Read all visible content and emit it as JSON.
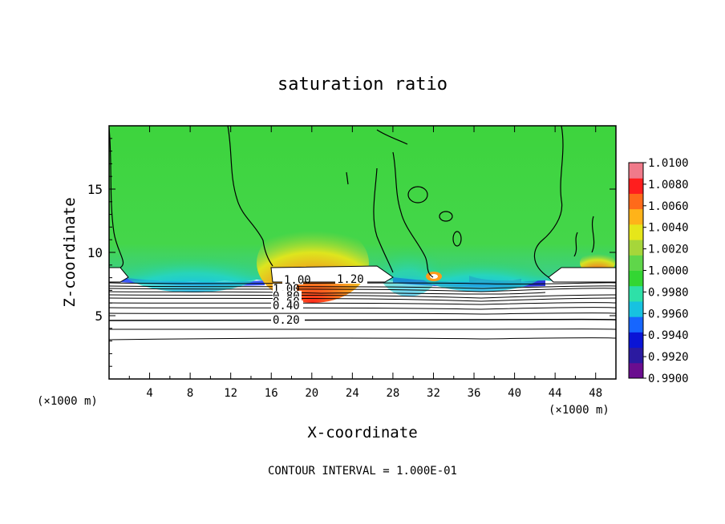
{
  "chart_data": {
    "type": "heatmap",
    "title": "saturation ratio",
    "xlabel": "X-coordinate",
    "ylabel": "Z-coordinate",
    "x_unit": "(×1000 m)",
    "x_unit_right": "(×1000 m)",
    "xlim": [
      0,
      50
    ],
    "ylim": [
      0,
      20
    ],
    "x_ticks": [
      "4",
      "8",
      "12",
      "16",
      "20",
      "24",
      "28",
      "32",
      "36",
      "40",
      "44",
      "48"
    ],
    "y_ticks": [
      "5",
      "10",
      "15"
    ],
    "colorbar": {
      "min": 0.99,
      "max": 1.01,
      "labels": [
        "1.0100",
        "1.0080",
        "1.0060",
        "1.0040",
        "1.0020",
        "1.0000",
        "0.9980",
        "0.9960",
        "0.9940",
        "0.9920",
        "0.9900"
      ],
      "colors": [
        "#6a0d8f",
        "#2b1aa0",
        "#0a14d6",
        "#1666ff",
        "#17c2e0",
        "#2ee0a8",
        "#33d633",
        "#5fd64a",
        "#a6d63a",
        "#e6e61a",
        "#ffb319",
        "#ff6a1a",
        "#ff1e1e",
        "#f07a8a"
      ]
    },
    "contour_labels": [
      "1.00",
      "1.20",
      "1.00",
      "0.80",
      "0.60",
      "0.40",
      "0.20"
    ],
    "contour_interval_text": "CONTOUR INTERVAL = 1.000E-01"
  }
}
